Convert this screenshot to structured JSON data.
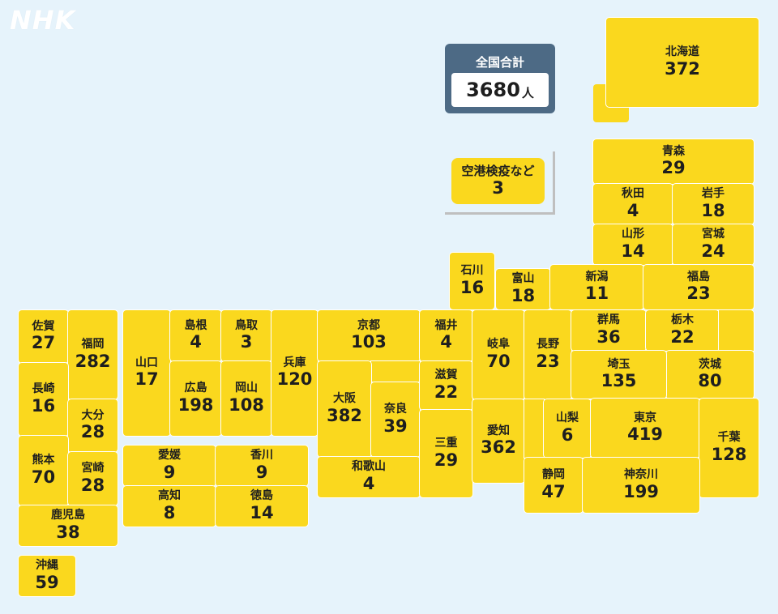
{
  "logo": "NHK",
  "total": {
    "label": "全国合計",
    "value": "3680",
    "unit": "人"
  },
  "airport": {
    "name": "空港検疫など",
    "value": "3"
  },
  "prefectures": {
    "hokkaido": {
      "name": "北海道",
      "value": "372"
    },
    "aomori": {
      "name": "青森",
      "value": "29"
    },
    "akita": {
      "name": "秋田",
      "value": "4"
    },
    "iwate": {
      "name": "岩手",
      "value": "18"
    },
    "yamagata": {
      "name": "山形",
      "value": "14"
    },
    "miyagi": {
      "name": "宮城",
      "value": "24"
    },
    "ishikawa": {
      "name": "石川",
      "value": "16"
    },
    "toyama": {
      "name": "富山",
      "value": "18"
    },
    "niigata": {
      "name": "新潟",
      "value": "11"
    },
    "fukushima": {
      "name": "福島",
      "value": "23"
    },
    "saga": {
      "name": "佐賀",
      "value": "27"
    },
    "fukuoka": {
      "name": "福岡",
      "value": "282"
    },
    "yamaguchi": {
      "name": "山口",
      "value": "17"
    },
    "shimane": {
      "name": "島根",
      "value": "4"
    },
    "tottori": {
      "name": "鳥取",
      "value": "3"
    },
    "hyogo": {
      "name": "兵庫",
      "value": "120"
    },
    "kyoto": {
      "name": "京都",
      "value": "103"
    },
    "fukui": {
      "name": "福井",
      "value": "4"
    },
    "gifu": {
      "name": "岐阜",
      "value": "70"
    },
    "nagano": {
      "name": "長野",
      "value": "23"
    },
    "gunma": {
      "name": "群馬",
      "value": "36"
    },
    "tochigi": {
      "name": "栃木",
      "value": "22"
    },
    "ibaraki": {
      "name": "茨城",
      "value": "80"
    },
    "saitama": {
      "name": "埼玉",
      "value": "135"
    },
    "nagasaki": {
      "name": "長崎",
      "value": "16"
    },
    "oita": {
      "name": "大分",
      "value": "28"
    },
    "hiroshima": {
      "name": "広島",
      "value": "198"
    },
    "okayama": {
      "name": "岡山",
      "value": "108"
    },
    "osaka": {
      "name": "大阪",
      "value": "382"
    },
    "nara": {
      "name": "奈良",
      "value": "39"
    },
    "shiga": {
      "name": "滋賀",
      "value": "22"
    },
    "aichi": {
      "name": "愛知",
      "value": "362"
    },
    "yamanashi": {
      "name": "山梨",
      "value": "6"
    },
    "tokyo": {
      "name": "東京",
      "value": "419"
    },
    "chiba": {
      "name": "千葉",
      "value": "128"
    },
    "kumamoto": {
      "name": "熊本",
      "value": "70"
    },
    "miyazaki": {
      "name": "宮崎",
      "value": "28"
    },
    "ehime": {
      "name": "愛媛",
      "value": "9"
    },
    "kagawa": {
      "name": "香川",
      "value": "9"
    },
    "mie": {
      "name": "三重",
      "value": "29"
    },
    "kochi": {
      "name": "高知",
      "value": "8"
    },
    "tokushima": {
      "name": "徳島",
      "value": "14"
    },
    "wakayama": {
      "name": "和歌山",
      "value": "4"
    },
    "shizuoka": {
      "name": "静岡",
      "value": "47"
    },
    "kanagawa": {
      "name": "神奈川",
      "value": "199"
    },
    "kagoshima": {
      "name": "鹿児島",
      "value": "38"
    },
    "okinawa": {
      "name": "沖縄",
      "value": "59"
    }
  }
}
